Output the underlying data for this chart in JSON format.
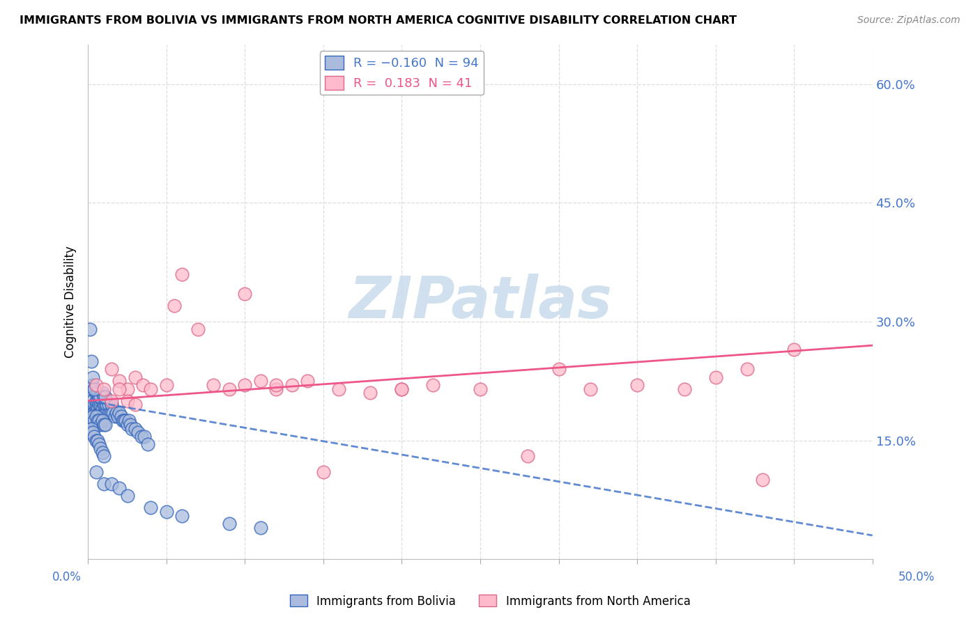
{
  "title": "IMMIGRANTS FROM BOLIVIA VS IMMIGRANTS FROM NORTH AMERICA COGNITIVE DISABILITY CORRELATION CHART",
  "source": "Source: ZipAtlas.com",
  "ylabel": "Cognitive Disability",
  "xlim": [
    0.0,
    0.5
  ],
  "ylim": [
    0.0,
    0.65
  ],
  "bolivia_R": -0.16,
  "bolivia_N": 94,
  "north_america_R": 0.183,
  "north_america_N": 41,
  "bolivia_face_color": "#aabbdd",
  "bolivia_edge_color": "#3366bb",
  "north_america_face_color": "#ffbbcc",
  "north_america_edge_color": "#dd6688",
  "bolivia_line_color": "#4477cc",
  "north_america_line_color": "#ee5588",
  "watermark_color": "#ccddee",
  "grid_color": "#dddddd",
  "right_axis_color": "#4477cc",
  "bolivia_x": [
    0.002,
    0.003,
    0.003,
    0.004,
    0.004,
    0.005,
    0.005,
    0.005,
    0.006,
    0.006,
    0.006,
    0.007,
    0.007,
    0.007,
    0.008,
    0.008,
    0.008,
    0.009,
    0.009,
    0.009,
    0.01,
    0.01,
    0.01,
    0.011,
    0.011,
    0.012,
    0.012,
    0.013,
    0.013,
    0.014,
    0.015,
    0.015,
    0.016,
    0.017,
    0.018,
    0.019,
    0.02,
    0.021,
    0.022,
    0.023,
    0.024,
    0.025,
    0.026,
    0.027,
    0.028,
    0.03,
    0.032,
    0.034,
    0.036,
    0.038,
    0.002,
    0.003,
    0.004,
    0.005,
    0.006,
    0.007,
    0.008,
    0.009,
    0.01,
    0.011,
    0.002,
    0.003,
    0.004,
    0.005,
    0.006,
    0.007,
    0.008,
    0.009,
    0.01,
    0.011,
    0.001,
    0.002,
    0.003,
    0.004,
    0.005,
    0.006,
    0.007,
    0.008,
    0.009,
    0.01,
    0.001,
    0.002,
    0.003,
    0.004,
    0.005,
    0.01,
    0.015,
    0.02,
    0.025,
    0.04,
    0.05,
    0.06,
    0.09,
    0.11
  ],
  "bolivia_y": [
    0.19,
    0.185,
    0.2,
    0.195,
    0.185,
    0.19,
    0.195,
    0.2,
    0.185,
    0.19,
    0.2,
    0.185,
    0.195,
    0.205,
    0.185,
    0.195,
    0.2,
    0.185,
    0.19,
    0.2,
    0.185,
    0.195,
    0.205,
    0.185,
    0.195,
    0.185,
    0.195,
    0.185,
    0.195,
    0.185,
    0.185,
    0.195,
    0.185,
    0.18,
    0.185,
    0.18,
    0.185,
    0.18,
    0.175,
    0.175,
    0.175,
    0.17,
    0.175,
    0.17,
    0.165,
    0.165,
    0.16,
    0.155,
    0.155,
    0.145,
    0.175,
    0.18,
    0.175,
    0.18,
    0.175,
    0.175,
    0.17,
    0.175,
    0.17,
    0.17,
    0.215,
    0.22,
    0.215,
    0.21,
    0.21,
    0.205,
    0.205,
    0.21,
    0.205,
    0.205,
    0.16,
    0.165,
    0.16,
    0.155,
    0.15,
    0.15,
    0.145,
    0.14,
    0.135,
    0.13,
    0.29,
    0.25,
    0.23,
    0.215,
    0.11,
    0.095,
    0.095,
    0.09,
    0.08,
    0.065,
    0.06,
    0.055,
    0.045,
    0.04
  ],
  "north_america_x": [
    0.005,
    0.01,
    0.015,
    0.02,
    0.025,
    0.03,
    0.035,
    0.04,
    0.05,
    0.055,
    0.06,
    0.07,
    0.08,
    0.09,
    0.1,
    0.11,
    0.12,
    0.13,
    0.14,
    0.16,
    0.18,
    0.2,
    0.22,
    0.25,
    0.28,
    0.3,
    0.32,
    0.35,
    0.38,
    0.4,
    0.42,
    0.45,
    0.015,
    0.02,
    0.025,
    0.03,
    0.1,
    0.12,
    0.15,
    0.2,
    0.43
  ],
  "north_america_y": [
    0.22,
    0.215,
    0.24,
    0.225,
    0.215,
    0.23,
    0.22,
    0.215,
    0.22,
    0.32,
    0.36,
    0.29,
    0.22,
    0.215,
    0.22,
    0.225,
    0.215,
    0.22,
    0.225,
    0.215,
    0.21,
    0.215,
    0.22,
    0.215,
    0.13,
    0.24,
    0.215,
    0.22,
    0.215,
    0.23,
    0.24,
    0.265,
    0.2,
    0.215,
    0.2,
    0.195,
    0.335,
    0.22,
    0.11,
    0.215,
    0.1
  ],
  "bolivia_line_x": [
    0.0,
    0.5
  ],
  "bolivia_line_y_start": 0.2,
  "bolivia_line_y_end": 0.03,
  "north_america_line_x": [
    0.0,
    0.5
  ],
  "north_america_line_y_start": 0.2,
  "north_america_line_y_end": 0.27
}
